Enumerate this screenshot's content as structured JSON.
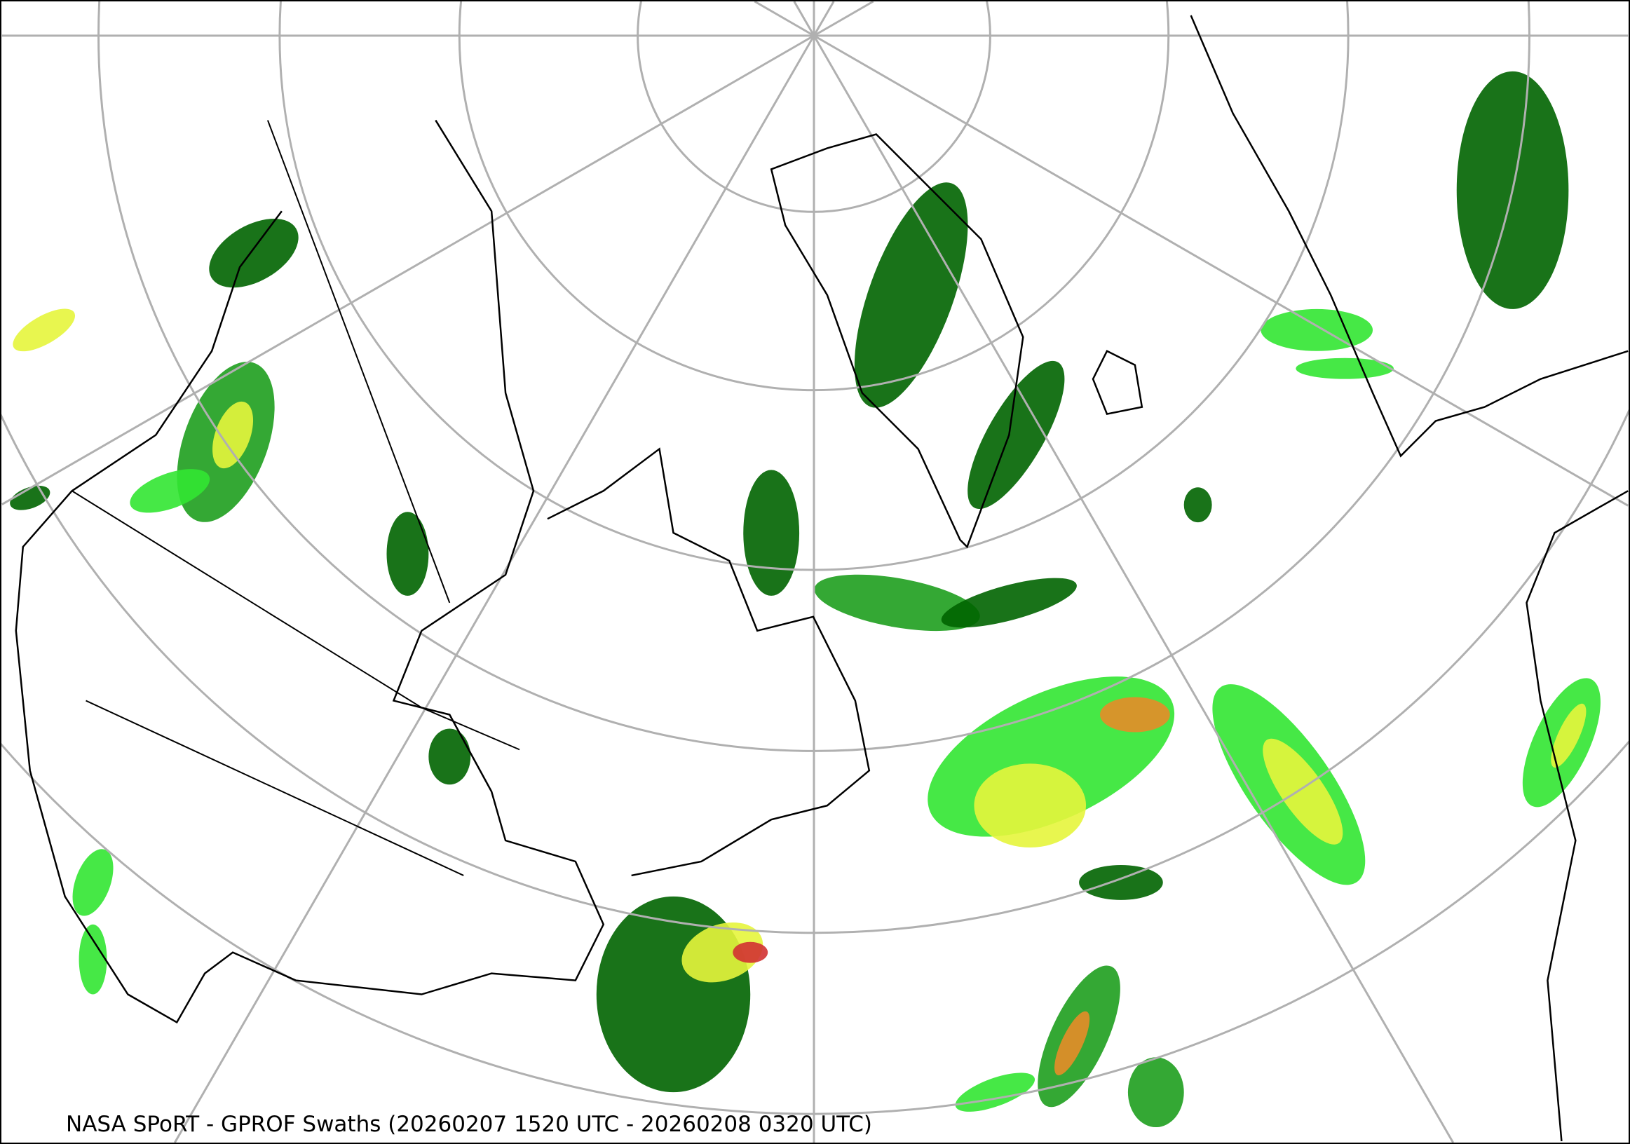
{
  "caption": "NASA SPoRT - GPROF Swaths (20260207 1520 UTC - 20260208 0320 UTC)",
  "colors": {
    "graticule": "#b0b0b0",
    "coastline": "#000000",
    "precip_light": "#006400",
    "precip_low": "#1e9e1e",
    "precip_mid": "#32e632",
    "precip_high": "#e6f53c",
    "precip_heavy": "#e68c28",
    "precip_extreme": "#d23232"
  },
  "projection": "north-polar-stereographic"
}
